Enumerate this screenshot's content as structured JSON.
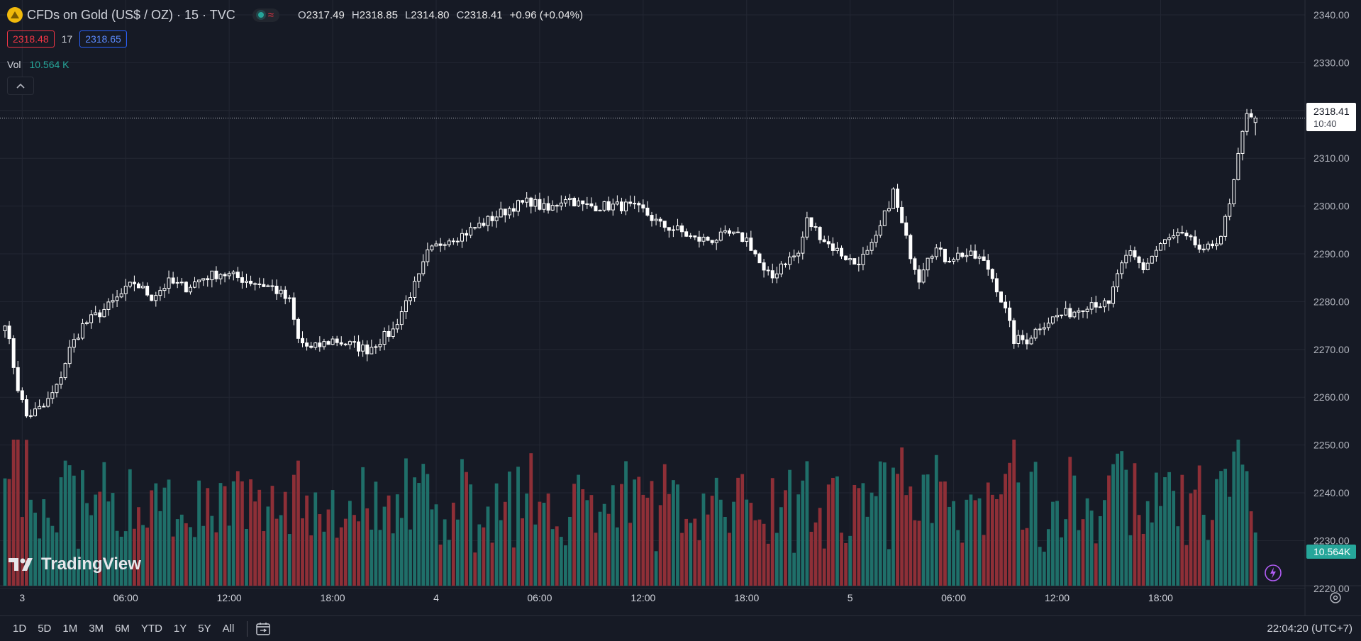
{
  "header": {
    "symbol_title": "CFDs on Gold (US$ / OZ) · 15 · TVC",
    "open_label": "O",
    "open": "2317.49",
    "high_label": "H",
    "high": "2318.85",
    "low_label": "L",
    "low": "2314.80",
    "close_label": "C",
    "close": "2318.41",
    "change": "+0.96 (+0.04%)",
    "bid": "2318.48",
    "spread": "17",
    "ask": "2318.65",
    "vol_label": "Vol",
    "vol_value": "10.564 K"
  },
  "price_scale": {
    "last_price": "2318.41",
    "countdown": "10:40",
    "volume_badge": "10.564K"
  },
  "watermark": "TradingView",
  "bottom_bar": {
    "ranges": [
      "1D",
      "5D",
      "1M",
      "3M",
      "6M",
      "YTD",
      "1Y",
      "5Y",
      "All"
    ],
    "clock": "22:04:20 (UTC+7)"
  },
  "colors": {
    "background": "#161a25",
    "candle_up": "#ffffff",
    "candle_down": "#ffffff",
    "volume_up": "#1f6f69",
    "volume_down": "#8e2f37",
    "grid": "#232733",
    "axis_text": "#b2b5be"
  },
  "chart_data": {
    "type": "candlestick",
    "interval": "15",
    "ylim": [
      2220,
      2340
    ],
    "yticks": [
      "2340.00",
      "2330.00",
      "2320.00",
      "2310.00",
      "2300.00",
      "2290.00",
      "2280.00",
      "2270.00",
      "2260.00",
      "2250.00",
      "2240.00",
      "2230.00",
      "2220.00"
    ],
    "xticks": [
      {
        "label": "3",
        "bar": 4
      },
      {
        "label": "06:00",
        "bar": 28
      },
      {
        "label": "12:00",
        "bar": 52
      },
      {
        "label": "18:00",
        "bar": 76
      },
      {
        "label": "4",
        "bar": 100
      },
      {
        "label": "06:00",
        "bar": 124
      },
      {
        "label": "12:00",
        "bar": 148
      },
      {
        "label": "18:00",
        "bar": 172
      },
      {
        "label": "5",
        "bar": 196
      },
      {
        "label": "06:00",
        "bar": 220
      },
      {
        "label": "12:00",
        "bar": 244
      },
      {
        "label": "18:00",
        "bar": 268
      }
    ],
    "anchors": [
      [
        0,
        2276
      ],
      [
        3,
        2262
      ],
      [
        5,
        2256
      ],
      [
        9,
        2258
      ],
      [
        12,
        2262
      ],
      [
        15,
        2270
      ],
      [
        18,
        2275
      ],
      [
        24,
        2279
      ],
      [
        30,
        2284
      ],
      [
        34,
        2281
      ],
      [
        38,
        2284
      ],
      [
        42,
        2283
      ],
      [
        46,
        2285
      ],
      [
        50,
        2286
      ],
      [
        54,
        2285
      ],
      [
        58,
        2284
      ],
      [
        62,
        2283
      ],
      [
        66,
        2280
      ],
      [
        68,
        2272
      ],
      [
        71,
        2270
      ],
      [
        76,
        2272
      ],
      [
        80,
        2271
      ],
      [
        84,
        2270
      ],
      [
        87,
        2272
      ],
      [
        90,
        2274
      ],
      [
        93,
        2280
      ],
      [
        96,
        2285
      ],
      [
        98,
        2290
      ],
      [
        102,
        2293
      ],
      [
        106,
        2294
      ],
      [
        110,
        2296
      ],
      [
        114,
        2298
      ],
      [
        118,
        2300
      ],
      [
        122,
        2301
      ],
      [
        126,
        2299
      ],
      [
        130,
        2302
      ],
      [
        134,
        2300
      ],
      [
        138,
        2300
      ],
      [
        144,
        2300
      ],
      [
        148,
        2299
      ],
      [
        152,
        2296
      ],
      [
        156,
        2295
      ],
      [
        160,
        2293
      ],
      [
        164,
        2293
      ],
      [
        168,
        2294
      ],
      [
        172,
        2293
      ],
      [
        174,
        2290
      ],
      [
        176,
        2286
      ],
      [
        178,
        2285
      ],
      [
        180,
        2288
      ],
      [
        184,
        2290
      ],
      [
        186,
        2297
      ],
      [
        188,
        2295
      ],
      [
        191,
        2292
      ],
      [
        194,
        2290
      ],
      [
        197,
        2288
      ],
      [
        200,
        2290
      ],
      [
        202,
        2293
      ],
      [
        204,
        2298
      ],
      [
        206,
        2303
      ],
      [
        208,
        2296
      ],
      [
        210,
        2290
      ],
      [
        212,
        2285
      ],
      [
        214,
        2290
      ],
      [
        216,
        2291
      ],
      [
        218,
        2289
      ],
      [
        222,
        2290
      ],
      [
        226,
        2289
      ],
      [
        228,
        2287
      ],
      [
        230,
        2283
      ],
      [
        232,
        2278
      ],
      [
        234,
        2272
      ],
      [
        237,
        2272
      ],
      [
        240,
        2275
      ],
      [
        244,
        2277
      ],
      [
        248,
        2278
      ],
      [
        252,
        2280
      ],
      [
        256,
        2279
      ],
      [
        258,
        2286
      ],
      [
        261,
        2290
      ],
      [
        264,
        2287
      ],
      [
        268,
        2292
      ],
      [
        272,
        2294
      ],
      [
        276,
        2292
      ],
      [
        278,
        2290
      ],
      [
        280,
        2292
      ],
      [
        282,
        2294
      ],
      [
        284,
        2300
      ],
      [
        286,
        2310
      ],
      [
        288,
        2320
      ],
      [
        290,
        2318.41
      ]
    ],
    "volume_max": 29000,
    "volume_scale_note": "",
    "last_bar": {
      "open": 2317.49,
      "high": 2318.85,
      "low": 2314.8,
      "close": 2318.41,
      "volume": 10564
    }
  }
}
